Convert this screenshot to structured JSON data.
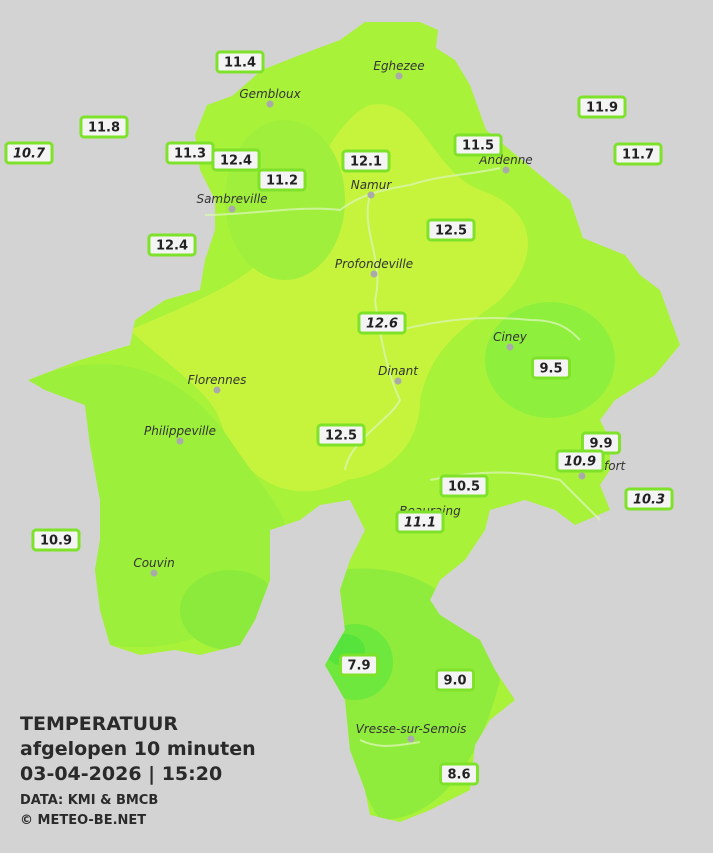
{
  "cities": [
    "Eghezee",
    "Gembloux",
    "Andenne",
    "Namur",
    "Sambreville",
    "Profondeville",
    "Ciney",
    "Dinant",
    "Florennes",
    "Philippeville",
    "Rochefort",
    "Beauraing",
    "Couvin",
    "Vresse-sur-Semois"
  ],
  "stations": [
    {
      "value": "11.4",
      "italic": false
    },
    {
      "value": "11.8",
      "italic": false
    },
    {
      "value": "10.7",
      "italic": true
    },
    {
      "value": "11.3",
      "italic": false
    },
    {
      "value": "12.4",
      "italic": false
    },
    {
      "value": "12.1",
      "italic": false
    },
    {
      "value": "11.2",
      "italic": false
    },
    {
      "value": "11.5",
      "italic": false
    },
    {
      "value": "11.9",
      "italic": false
    },
    {
      "value": "11.7",
      "italic": false
    },
    {
      "value": "12.4",
      "italic": false
    },
    {
      "value": "12.5",
      "italic": false
    },
    {
      "value": "12.6",
      "italic": true
    },
    {
      "value": "9.5",
      "italic": false
    },
    {
      "value": "12.5",
      "italic": false
    },
    {
      "value": "9.9",
      "italic": false
    },
    {
      "value": "10.9",
      "italic": true
    },
    {
      "value": "10.5",
      "italic": false
    },
    {
      "value": "10.3",
      "italic": true
    },
    {
      "value": "11.1",
      "italic": true
    },
    {
      "value": "10.9",
      "italic": false
    },
    {
      "value": "7.9",
      "italic": false
    },
    {
      "value": "9.0",
      "italic": false
    },
    {
      "value": "8.6",
      "italic": false
    }
  ],
  "legend": {
    "title": "TEMPERATUUR",
    "subtitle": "afgelopen 10 minuten",
    "datetime": "03-04-2026  |  15:20",
    "source": "DATA: KMI & BMCB",
    "credit": "© METEO-BE.NET"
  }
}
